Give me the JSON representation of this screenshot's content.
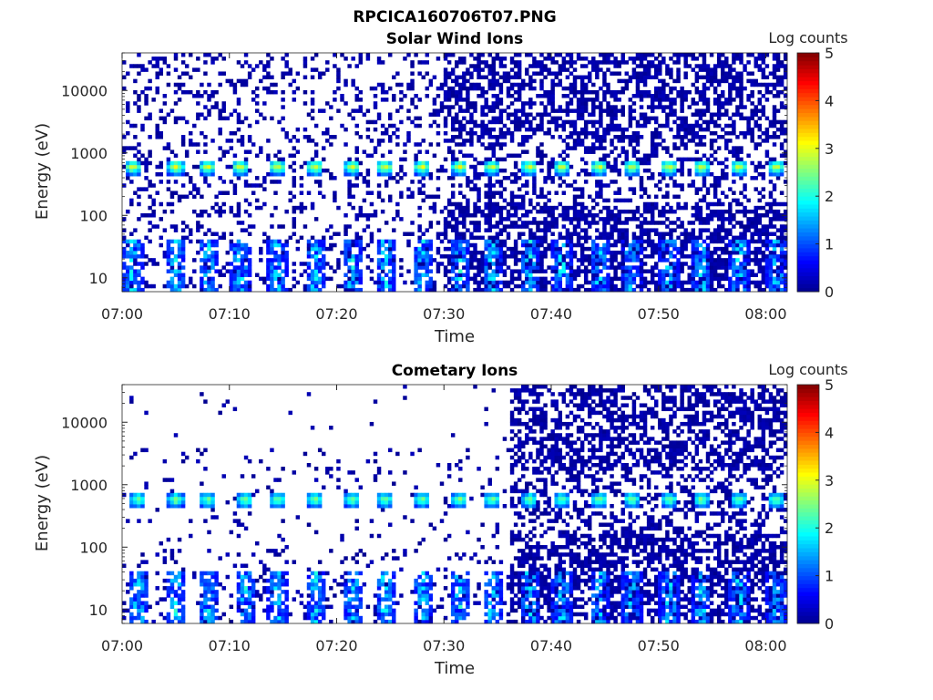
{
  "figure_title": "RPCICA160706T07.PNG",
  "colormap": {
    "name": "jet",
    "stops": [
      "#00008f",
      "#0000ff",
      "#0080ff",
      "#00ffff",
      "#80ff80",
      "#ffff00",
      "#ff8000",
      "#ff0000",
      "#800000"
    ]
  },
  "chart_data": [
    {
      "type": "heatmap",
      "title": "Solar Wind Ions",
      "xlabel": "Time",
      "ylabel": "Energy (eV)",
      "x_ticks": [
        "07:00",
        "07:10",
        "07:20",
        "07:30",
        "07:40",
        "07:50",
        "08:00"
      ],
      "y_ticks": [
        "10",
        "100",
        "1000",
        "10000"
      ],
      "y_scale": "log",
      "xlim": [
        "07:00",
        "08:02"
      ],
      "ylim": [
        6,
        40000
      ],
      "colorbar": {
        "label": "Log counts",
        "ticks": [
          "0",
          "1",
          "2",
          "3",
          "4",
          "5"
        ],
        "range": [
          0,
          5
        ]
      },
      "dense_start_min": 30,
      "sweep_peaks_min": [
        1,
        5,
        8,
        11,
        14.5,
        18,
        21.5,
        24.5,
        28,
        31.5,
        34.5,
        38,
        41,
        44.5,
        47.5,
        51,
        54,
        57.5,
        61
      ],
      "beam_energy_ev": 600,
      "peak_log_counts": 3.0,
      "seed": 7
    },
    {
      "type": "heatmap",
      "title": "Cometary Ions",
      "xlabel": "Time",
      "ylabel": "Energy (eV)",
      "x_ticks": [
        "07:00",
        "07:10",
        "07:20",
        "07:30",
        "07:40",
        "07:50",
        "08:00"
      ],
      "y_ticks": [
        "10",
        "100",
        "1000",
        "10000"
      ],
      "y_scale": "log",
      "xlim": [
        "07:00",
        "08:02"
      ],
      "ylim": [
        6,
        40000
      ],
      "colorbar": {
        "label": "Log counts",
        "ticks": [
          "0",
          "1",
          "2",
          "3",
          "4",
          "5"
        ],
        "range": [
          0,
          5
        ]
      },
      "dense_start_min": 36,
      "sweep_peaks_min": [
        1.5,
        5,
        8,
        11.5,
        14.5,
        18,
        21.5,
        24.5,
        28,
        31.5,
        34.5,
        38,
        41,
        44.5,
        47.5,
        51,
        54,
        57.5,
        61
      ],
      "beam_energy_ev": 580,
      "peak_log_counts": 2.6,
      "seed": 19
    }
  ]
}
